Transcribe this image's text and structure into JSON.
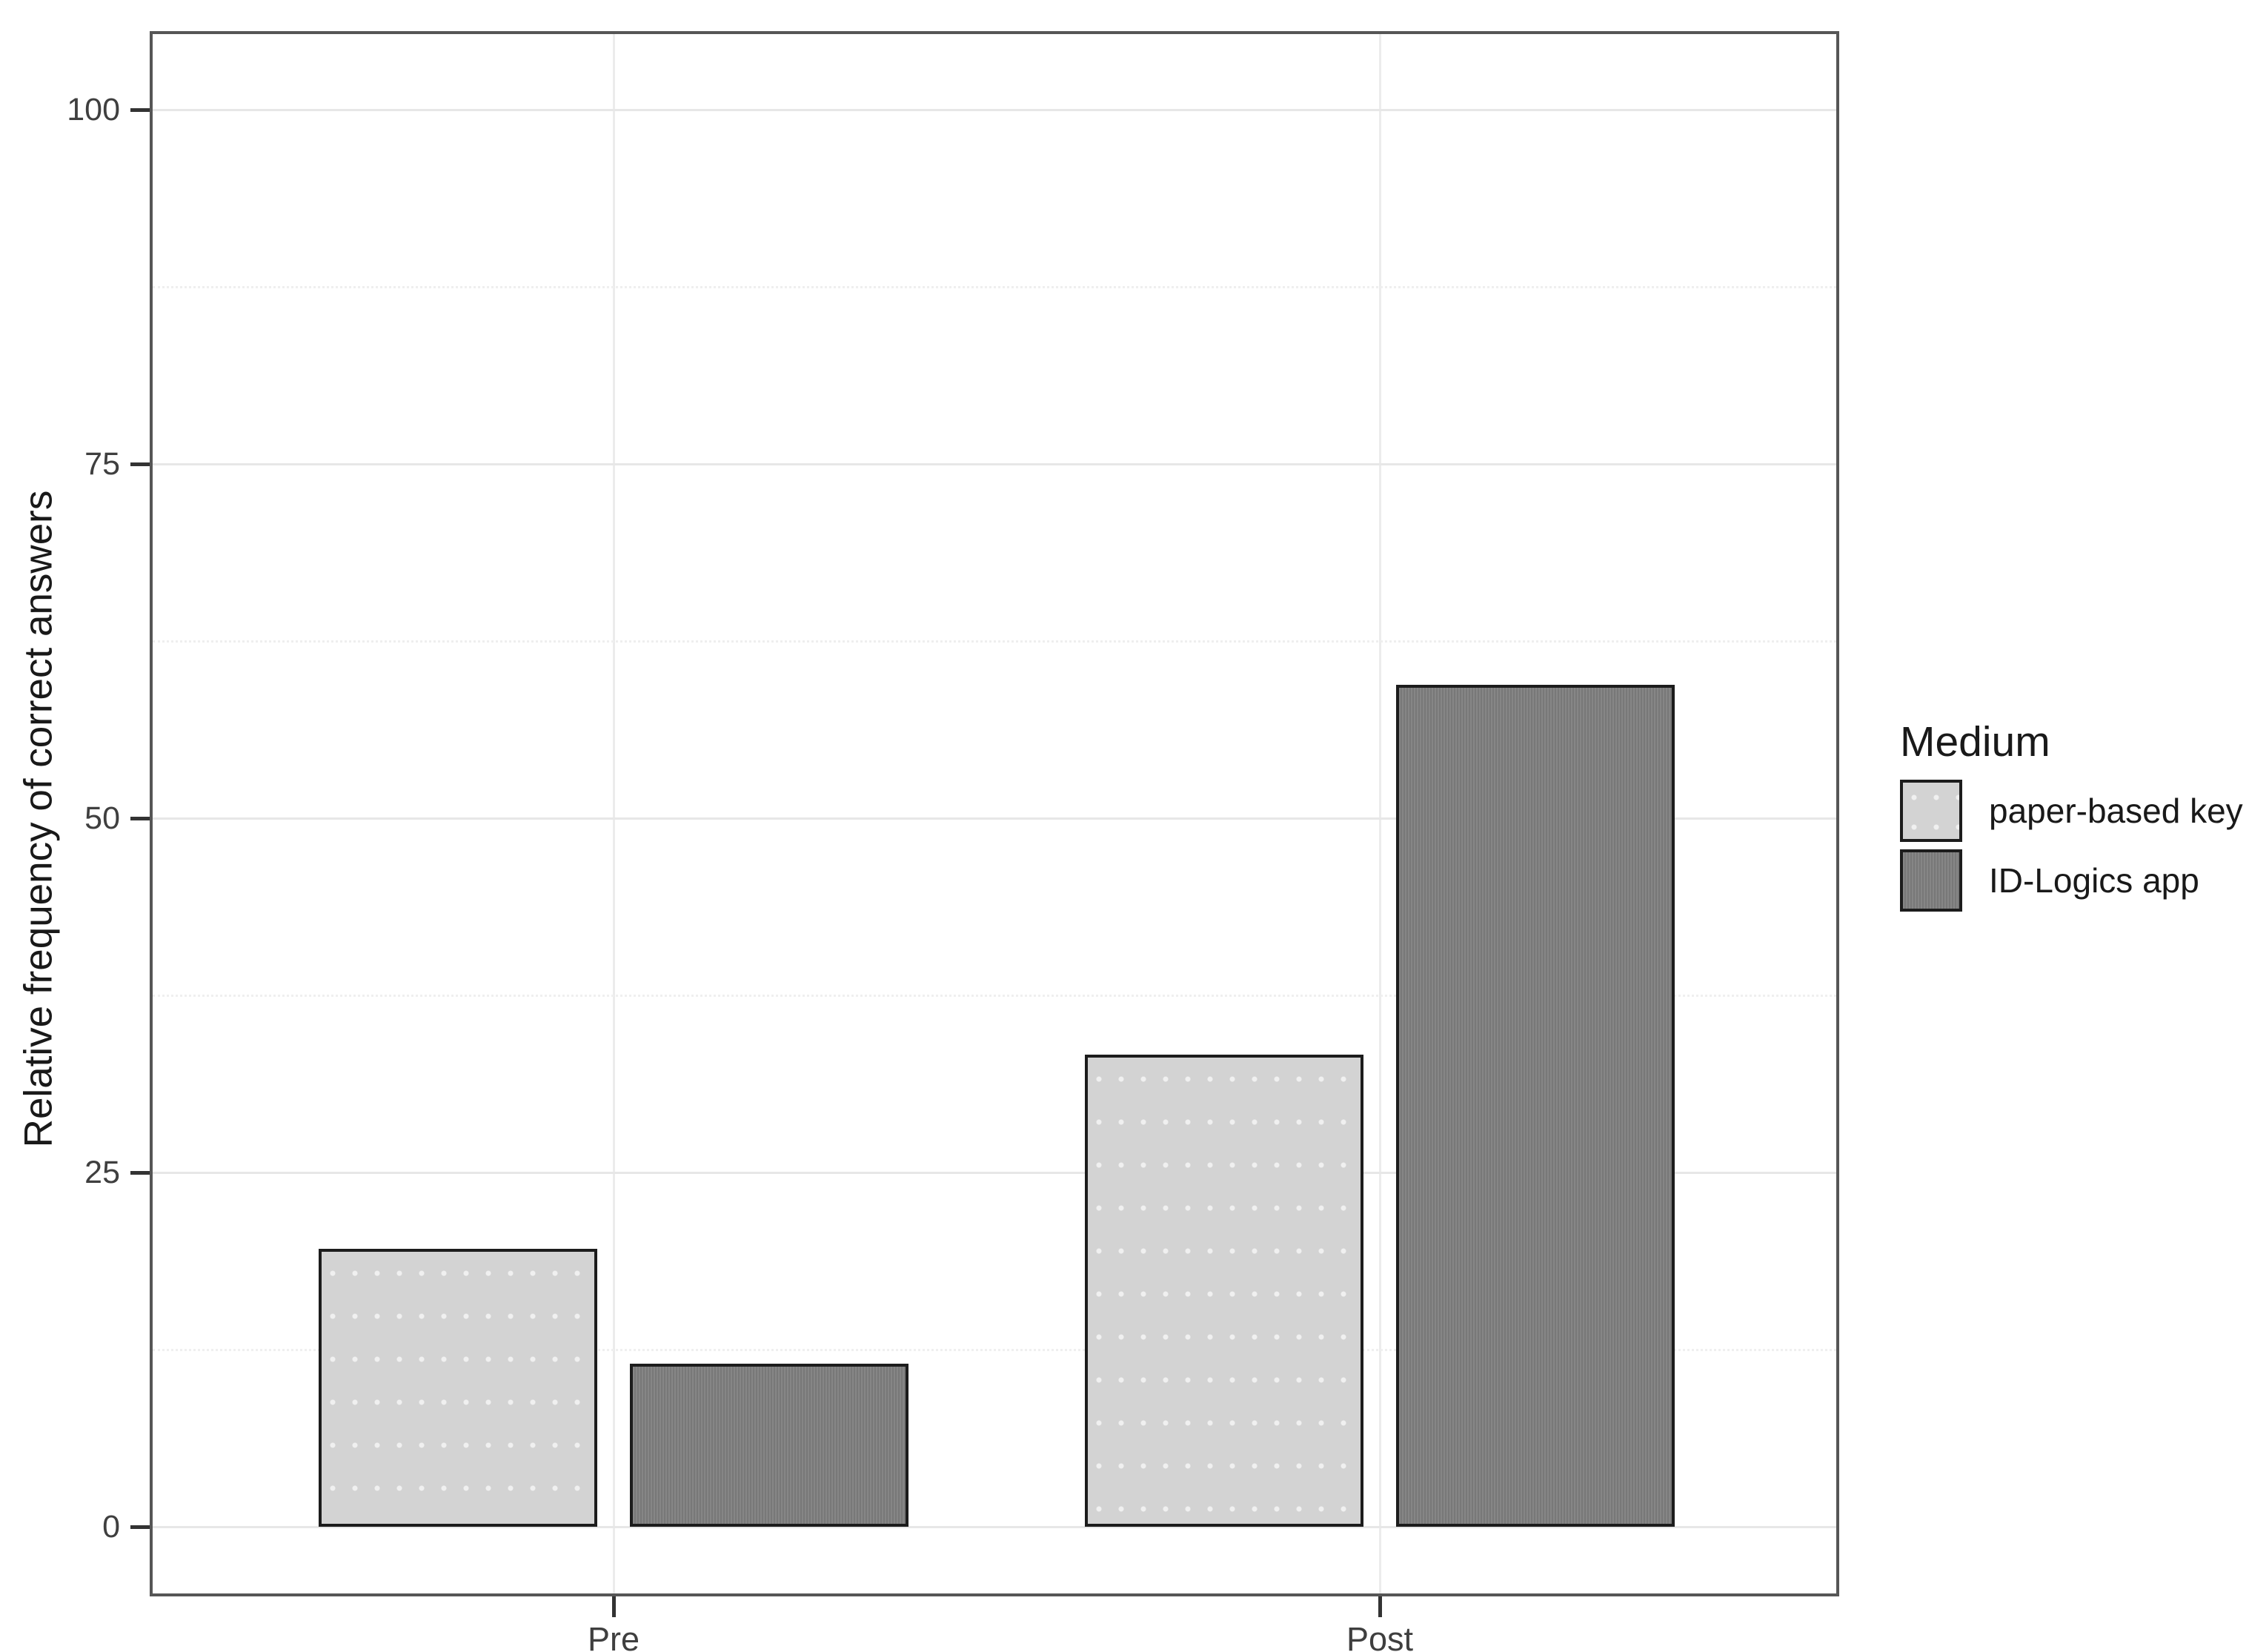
{
  "chart_data": {
    "type": "bar",
    "categories": [
      "Pre",
      "Post"
    ],
    "series": [
      {
        "name": "paper-based key",
        "color": "#d3d3d3",
        "values": [
          19.6,
          33.3
        ]
      },
      {
        "name": "ID-Logics app",
        "color": "#7e7e7e",
        "values": [
          11.5,
          59.4
        ]
      }
    ],
    "title": "",
    "xlabel": "",
    "ylabel": "Relative frequency of correct answers",
    "ylim": [
      0,
      100
    ],
    "yticks": [
      0,
      25,
      50,
      75,
      100
    ],
    "yticks_minor": [
      12.5,
      37.5,
      62.5,
      87.5
    ],
    "grid": "major+minor",
    "legend_title": "Medium",
    "legend_position": "right",
    "bar_edge_color": "#1c1c1c",
    "panel_border_color": "#565656",
    "gridline_color": "#e7e7e7",
    "tick_color": "#333333",
    "text_color": "#3f3f3f"
  }
}
